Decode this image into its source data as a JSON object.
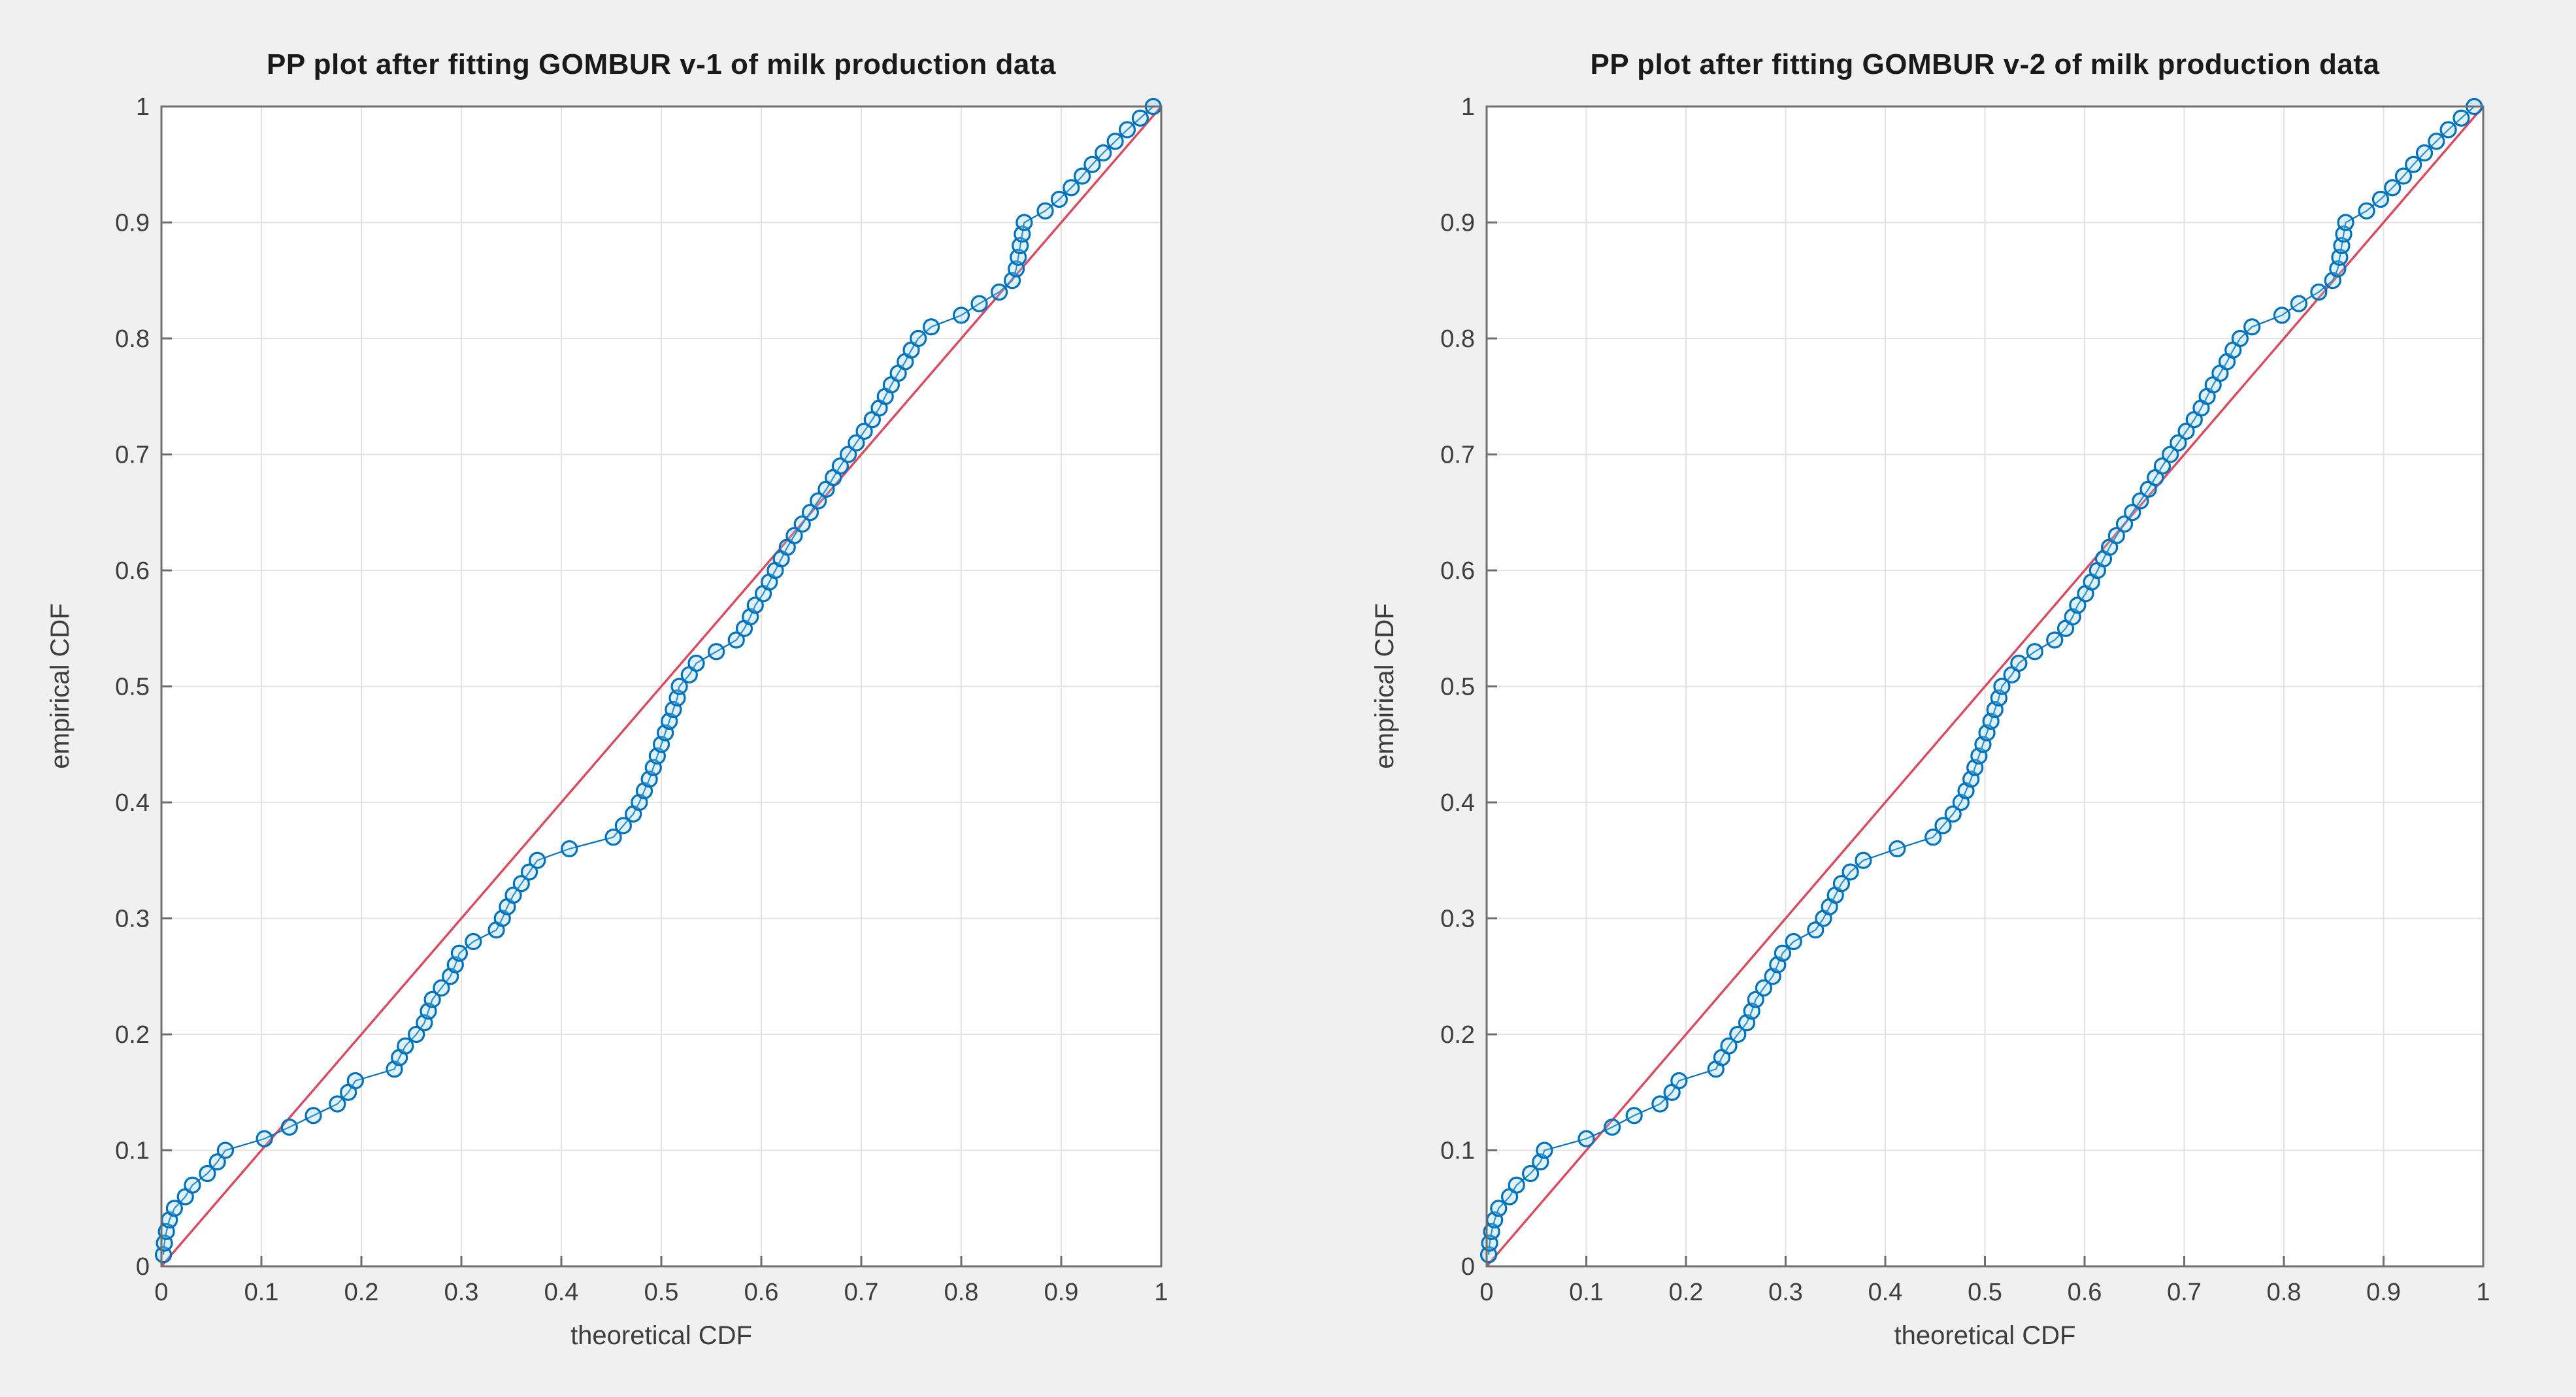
{
  "figure": {
    "background": "#f0f0f0",
    "plot_background": "#ffffff",
    "grid_color": "#e2e2e2",
    "axis_box_color": "#6e6e6e",
    "tick_label_color": "#3d3d3d",
    "title_color": "#1a1a1a",
    "marker_color": "#0072BD",
    "series_line_color": "#0072BD",
    "reference_line_color": "#d84a5f"
  },
  "chart_data": [
    {
      "type": "scatter",
      "title": "PP plot after fitting GOMBUR v-1 of milk production data",
      "xlabel": "theoretical CDF",
      "ylabel": "empirical CDF",
      "xlim": [
        0,
        1
      ],
      "ylim": [
        0,
        1
      ],
      "xticks": [
        "0",
        "0.1",
        "0.2",
        "0.3",
        "0.4",
        "0.5",
        "0.6",
        "0.7",
        "0.8",
        "0.9",
        "1"
      ],
      "yticks": [
        "0",
        "0.1",
        "0.2",
        "0.3",
        "0.4",
        "0.5",
        "0.6",
        "0.7",
        "0.8",
        "0.9",
        "1"
      ],
      "grid": true,
      "legend": null,
      "reference_line": {
        "name": "diagonal y = x",
        "from": [
          0,
          0
        ],
        "to": [
          1,
          1
        ]
      },
      "series": [
        {
          "name": "empirical vs theoretical CDF",
          "marker": "circle",
          "n_points": 100,
          "x": [
            0.002,
            0.003,
            0.005,
            0.008,
            0.013,
            0.024,
            0.031,
            0.046,
            0.056,
            0.064,
            0.103,
            0.128,
            0.152,
            0.176,
            0.187,
            0.194,
            0.233,
            0.238,
            0.244,
            0.255,
            0.263,
            0.267,
            0.271,
            0.28,
            0.289,
            0.294,
            0.298,
            0.312,
            0.335,
            0.341,
            0.346,
            0.352,
            0.36,
            0.368,
            0.376,
            0.408,
            0.452,
            0.462,
            0.472,
            0.478,
            0.483,
            0.488,
            0.492,
            0.496,
            0.5,
            0.504,
            0.508,
            0.512,
            0.516,
            0.518,
            0.528,
            0.535,
            0.555,
            0.575,
            0.583,
            0.589,
            0.594,
            0.602,
            0.608,
            0.614,
            0.62,
            0.626,
            0.633,
            0.641,
            0.649,
            0.657,
            0.665,
            0.672,
            0.679,
            0.687,
            0.695,
            0.703,
            0.711,
            0.718,
            0.724,
            0.73,
            0.737,
            0.744,
            0.75,
            0.757,
            0.77,
            0.8,
            0.818,
            0.838,
            0.851,
            0.855,
            0.857,
            0.859,
            0.861,
            0.863,
            0.884,
            0.898,
            0.91,
            0.921,
            0.931,
            0.942,
            0.954,
            0.966,
            0.979,
            0.992
          ],
          "y": [
            0.01,
            0.02,
            0.03,
            0.04,
            0.05,
            0.06,
            0.07,
            0.08,
            0.09,
            0.1,
            0.11,
            0.12,
            0.13,
            0.14,
            0.15,
            0.16,
            0.17,
            0.18,
            0.19,
            0.2,
            0.21,
            0.22,
            0.23,
            0.24,
            0.25,
            0.26,
            0.27,
            0.28,
            0.29,
            0.3,
            0.31,
            0.32,
            0.33,
            0.34,
            0.35,
            0.36,
            0.37,
            0.38,
            0.39,
            0.4,
            0.41,
            0.42,
            0.43,
            0.44,
            0.45,
            0.46,
            0.47,
            0.48,
            0.49,
            0.5,
            0.51,
            0.52,
            0.53,
            0.54,
            0.55,
            0.56,
            0.57,
            0.58,
            0.59,
            0.6,
            0.61,
            0.62,
            0.63,
            0.64,
            0.65,
            0.66,
            0.67,
            0.68,
            0.69,
            0.7,
            0.71,
            0.72,
            0.73,
            0.74,
            0.75,
            0.76,
            0.77,
            0.78,
            0.79,
            0.8,
            0.81,
            0.82,
            0.83,
            0.84,
            0.85,
            0.86,
            0.87,
            0.88,
            0.89,
            0.9,
            0.91,
            0.92,
            0.93,
            0.94,
            0.95,
            0.96,
            0.97,
            0.98,
            0.99,
            1.0
          ]
        }
      ]
    },
    {
      "type": "scatter",
      "title": "PP plot after fitting GOMBUR v-2 of milk production data",
      "xlabel": "theoretical CDF",
      "ylabel": "empirical CDF",
      "xlim": [
        0,
        1
      ],
      "ylim": [
        0,
        1
      ],
      "xticks": [
        "0",
        "0.1",
        "0.2",
        "0.3",
        "0.4",
        "0.5",
        "0.6",
        "0.7",
        "0.8",
        "0.9",
        "1"
      ],
      "yticks": [
        "0",
        "0.1",
        "0.2",
        "0.3",
        "0.4",
        "0.5",
        "0.6",
        "0.7",
        "0.8",
        "0.9",
        "1"
      ],
      "grid": true,
      "legend": null,
      "reference_line": {
        "name": "diagonal y = x",
        "from": [
          0,
          0
        ],
        "to": [
          1,
          1
        ]
      },
      "series": [
        {
          "name": "empirical vs theoretical CDF",
          "marker": "circle",
          "n_points": 100,
          "x": [
            0.002,
            0.003,
            0.005,
            0.008,
            0.012,
            0.023,
            0.03,
            0.044,
            0.054,
            0.058,
            0.1,
            0.126,
            0.148,
            0.174,
            0.186,
            0.193,
            0.23,
            0.236,
            0.243,
            0.252,
            0.261,
            0.266,
            0.27,
            0.278,
            0.287,
            0.292,
            0.297,
            0.308,
            0.33,
            0.338,
            0.344,
            0.35,
            0.356,
            0.365,
            0.378,
            0.412,
            0.448,
            0.458,
            0.468,
            0.476,
            0.481,
            0.486,
            0.49,
            0.494,
            0.498,
            0.502,
            0.506,
            0.51,
            0.514,
            0.517,
            0.527,
            0.534,
            0.55,
            0.57,
            0.581,
            0.588,
            0.593,
            0.601,
            0.607,
            0.613,
            0.619,
            0.625,
            0.632,
            0.64,
            0.648,
            0.656,
            0.664,
            0.671,
            0.678,
            0.686,
            0.694,
            0.702,
            0.71,
            0.717,
            0.723,
            0.729,
            0.736,
            0.743,
            0.749,
            0.756,
            0.768,
            0.798,
            0.815,
            0.835,
            0.849,
            0.854,
            0.856,
            0.858,
            0.86,
            0.862,
            0.883,
            0.897,
            0.909,
            0.92,
            0.93,
            0.941,
            0.953,
            0.965,
            0.978,
            0.991
          ],
          "y": [
            0.01,
            0.02,
            0.03,
            0.04,
            0.05,
            0.06,
            0.07,
            0.08,
            0.09,
            0.1,
            0.11,
            0.12,
            0.13,
            0.14,
            0.15,
            0.16,
            0.17,
            0.18,
            0.19,
            0.2,
            0.21,
            0.22,
            0.23,
            0.24,
            0.25,
            0.26,
            0.27,
            0.28,
            0.29,
            0.3,
            0.31,
            0.32,
            0.33,
            0.34,
            0.35,
            0.36,
            0.37,
            0.38,
            0.39,
            0.4,
            0.41,
            0.42,
            0.43,
            0.44,
            0.45,
            0.46,
            0.47,
            0.48,
            0.49,
            0.5,
            0.51,
            0.52,
            0.53,
            0.54,
            0.55,
            0.56,
            0.57,
            0.58,
            0.59,
            0.6,
            0.61,
            0.62,
            0.63,
            0.64,
            0.65,
            0.66,
            0.67,
            0.68,
            0.69,
            0.7,
            0.71,
            0.72,
            0.73,
            0.74,
            0.75,
            0.76,
            0.77,
            0.78,
            0.79,
            0.8,
            0.81,
            0.82,
            0.83,
            0.84,
            0.85,
            0.86,
            0.87,
            0.88,
            0.89,
            0.9,
            0.91,
            0.92,
            0.93,
            0.94,
            0.95,
            0.96,
            0.97,
            0.98,
            0.99,
            1.0
          ]
        }
      ]
    }
  ]
}
